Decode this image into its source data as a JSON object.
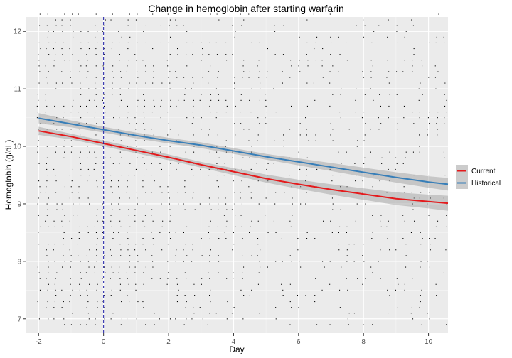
{
  "chart_data": {
    "type": "scatter",
    "title": "Change in hemoglobin after starting warfarin",
    "xlabel": "Day",
    "ylabel": "Hemoglobin (g/dL)",
    "xlim": [
      -2.4,
      10.6
    ],
    "ylim": [
      6.75,
      12.25
    ],
    "x_ticks": [
      -2,
      0,
      2,
      4,
      6,
      8,
      10
    ],
    "y_ticks": [
      7,
      8,
      9,
      10,
      11,
      12
    ],
    "x_tick_labels": [
      "-2",
      "0",
      "2",
      "4",
      "6",
      "8",
      "10"
    ],
    "y_tick_labels": [
      "7",
      "8",
      "9",
      "10",
      "11",
      "12"
    ],
    "grid": true,
    "vertical_reference_line": {
      "x": 0,
      "style": "dashed",
      "color": "#1a1aa6"
    },
    "legend_position": "right",
    "scatter_points": {
      "description_color": "#000000",
      "x_range": [
        -2,
        10.5
      ],
      "y_range": [
        6.9,
        12.3
      ],
      "x_step": 0.25,
      "y_step": 0.1
    },
    "series": [
      {
        "name": "Current",
        "color": "#e41a1c",
        "x": [
          -2,
          -1,
          0,
          1,
          2,
          3,
          4,
          5,
          6,
          7,
          8,
          9,
          10,
          10.6
        ],
        "y": [
          10.27,
          10.17,
          10.05,
          9.93,
          9.81,
          9.68,
          9.56,
          9.44,
          9.34,
          9.25,
          9.17,
          9.09,
          9.04,
          9.01
        ],
        "ci_halfwidth": [
          0.07,
          0.05,
          0.05,
          0.05,
          0.05,
          0.05,
          0.06,
          0.07,
          0.08,
          0.09,
          0.1,
          0.11,
          0.12,
          0.13
        ]
      },
      {
        "name": "Historical",
        "color": "#377eb8",
        "x": [
          -2,
          -1,
          0,
          1,
          2,
          3,
          4,
          5,
          6,
          7,
          8,
          9,
          10,
          10.6
        ],
        "y": [
          10.49,
          10.39,
          10.29,
          10.19,
          10.1,
          10.02,
          9.92,
          9.82,
          9.73,
          9.64,
          9.55,
          9.46,
          9.38,
          9.34
        ],
        "ci_halfwidth": [
          0.09,
          0.06,
          0.05,
          0.05,
          0.05,
          0.05,
          0.05,
          0.05,
          0.06,
          0.07,
          0.08,
          0.09,
          0.1,
          0.11
        ]
      }
    ]
  }
}
